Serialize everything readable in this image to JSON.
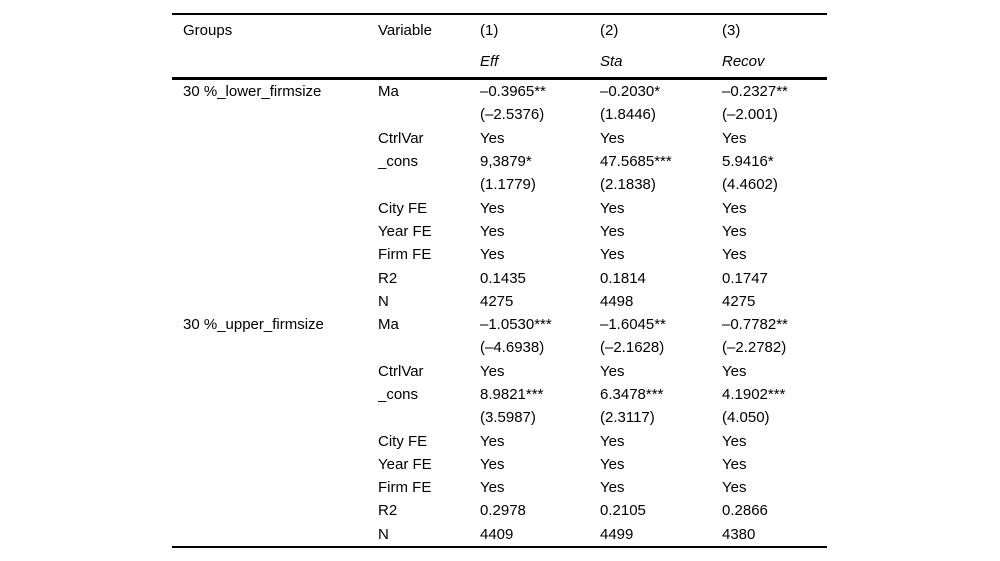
{
  "colors": {
    "text": "#000000",
    "background": "#ffffff",
    "rule": "#000000"
  },
  "table": {
    "columns": [
      "Groups",
      "Variable",
      "(1)",
      "(2)",
      "(3)"
    ],
    "subheaders": [
      "",
      "",
      "Eff",
      "Sta",
      "Recov"
    ],
    "rows": [
      [
        "30 %_lower_firmsize",
        "Ma",
        "–0.3965**",
        "–0.2030*",
        "–0.2327**"
      ],
      [
        "",
        "",
        "(–2.5376)",
        "(1.8446)",
        "(–2.001)"
      ],
      [
        "",
        "CtrlVar",
        "Yes",
        "Yes",
        "Yes"
      ],
      [
        "",
        "_cons",
        "9,3879*",
        "47.5685***",
        "5.9416*"
      ],
      [
        "",
        "",
        "(1.1779)",
        "(2.1838)",
        "(4.4602)"
      ],
      [
        "",
        "City FE",
        "Yes",
        "Yes",
        "Yes"
      ],
      [
        "",
        "Year FE",
        "Yes",
        "Yes",
        "Yes"
      ],
      [
        "",
        "Firm FE",
        "Yes",
        "Yes",
        "Yes"
      ],
      [
        "",
        "R2",
        "0.1435",
        "0.1814",
        "0.1747"
      ],
      [
        "",
        "N",
        "4275",
        "4498",
        "4275"
      ],
      [
        "30 %_upper_firmsize",
        "Ma",
        "–1.0530***",
        "–1.6045**",
        "–0.7782**"
      ],
      [
        "",
        "",
        "(–4.6938)",
        "(–2.1628)",
        "(–2.2782)"
      ],
      [
        "",
        "CtrlVar",
        "Yes",
        "Yes",
        "Yes"
      ],
      [
        "",
        "_cons",
        "8.9821***",
        "6.3478***",
        "4.1902***"
      ],
      [
        "",
        "",
        "(3.5987)",
        "(2.3117)",
        "(4.050)"
      ],
      [
        "",
        "City FE",
        "Yes",
        "Yes",
        "Yes"
      ],
      [
        "",
        "Year FE",
        "Yes",
        "Yes",
        "Yes"
      ],
      [
        "",
        "Firm FE",
        "Yes",
        "Yes",
        "Yes"
      ],
      [
        "",
        "R2",
        "0.2978",
        "0.2105",
        "0.2866"
      ],
      [
        "",
        "N",
        "4409",
        "4499",
        "4380"
      ]
    ]
  }
}
